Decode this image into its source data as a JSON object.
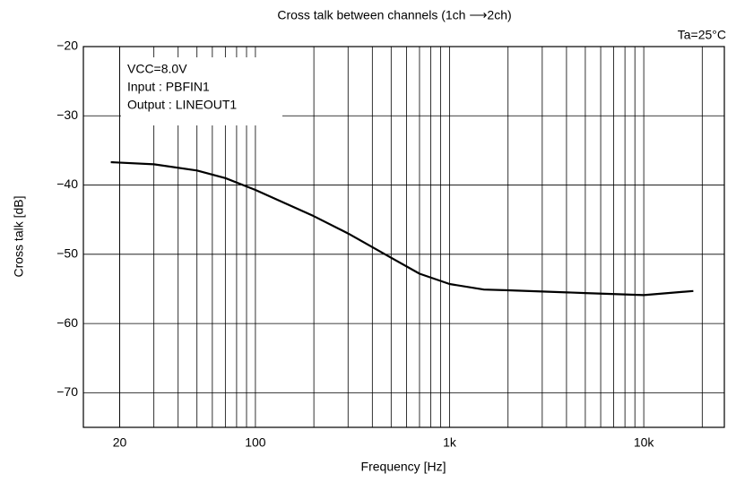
{
  "chart_data": {
    "type": "line",
    "title": "Cross talk between channels (1ch ⟶2ch)",
    "x_label": "Frequency [Hz]",
    "y_label": "Cross talk [dB]",
    "annotations": [
      "VCC=8.0V",
      "Input : PBFIN1",
      "Output : LINEOUT1"
    ],
    "condition": "Ta=25°C",
    "x": [
      18,
      30,
      50,
      70,
      100,
      200,
      300,
      500,
      700,
      1000,
      1500,
      2000,
      5000,
      10000,
      18000
    ],
    "series": [
      {
        "name": "1ch to 2ch",
        "color": "#000000",
        "values": [
          -36.7,
          -37.0,
          -37.9,
          -39.0,
          -40.7,
          -44.5,
          -47.0,
          -50.5,
          -52.8,
          -54.3,
          -55.1,
          -55.2,
          -55.6,
          -55.9,
          -55.3
        ]
      }
    ],
    "xlim": [
      13,
      26000
    ],
    "xscale": "log",
    "xticks": [
      {
        "value": 20,
        "label": "20"
      },
      {
        "value": 100,
        "label": "100"
      },
      {
        "value": 1000,
        "label": "1k"
      },
      {
        "value": 10000,
        "label": "10k"
      }
    ],
    "x_minor_ticks": [
      20,
      30,
      40,
      50,
      60,
      70,
      80,
      90,
      200,
      300,
      400,
      500,
      600,
      700,
      800,
      900,
      2000,
      3000,
      4000,
      5000,
      6000,
      7000,
      8000,
      9000,
      20000
    ],
    "ylim": [
      -75,
      -20
    ],
    "yticks": [
      {
        "value": -20,
        "label": "−20"
      },
      {
        "value": -30,
        "label": "−30"
      },
      {
        "value": -40,
        "label": "−40"
      },
      {
        "value": -50,
        "label": "−50"
      },
      {
        "value": -60,
        "label": "−60"
      },
      {
        "value": -70,
        "label": "−70"
      }
    ],
    "grid": true
  }
}
